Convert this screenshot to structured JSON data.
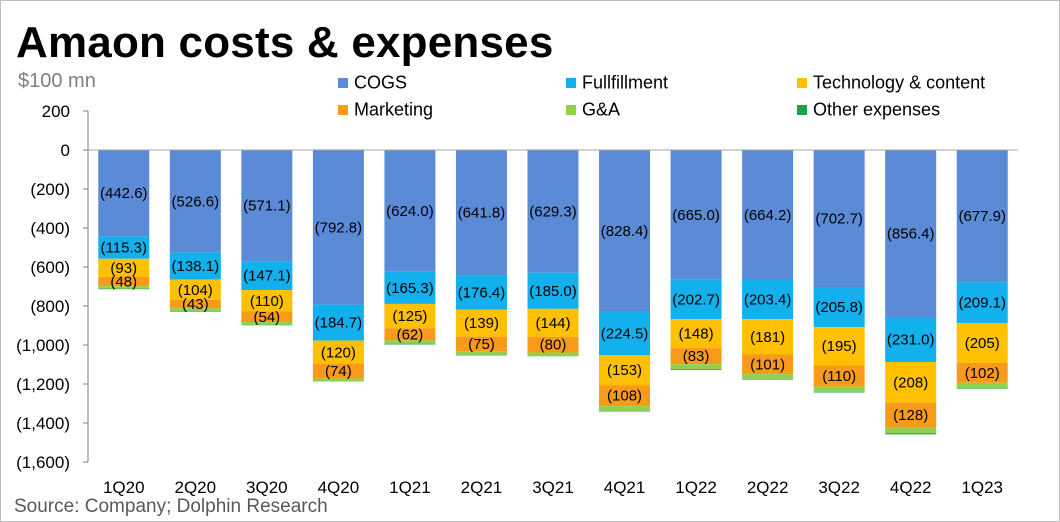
{
  "header": {
    "title": "Amaon costs & expenses",
    "unit": "$100 mn"
  },
  "footer": {
    "source": "Source: Company; Dolphin Research"
  },
  "colors": {
    "COGS": "#5b8bd6",
    "Fullfillment": "#12b0ec",
    "Technology & content": "#fec000",
    "Marketing": "#fa9a1a",
    "G&A": "#92d050",
    "Other expenses": "#1aa34a"
  },
  "chart_data": {
    "type": "bar",
    "stacked": true,
    "title": "Amaon costs & expenses",
    "ylabel": "$100 mn",
    "xlabel": "",
    "ylim": [
      -1600,
      200
    ],
    "yticks": [
      200,
      0,
      -200,
      -400,
      -600,
      -800,
      -1000,
      -1200,
      -1400,
      -1600
    ],
    "ytick_labels": [
      "200",
      "0",
      "(200)",
      "(400)",
      "(600)",
      "(800)",
      "(1,000)",
      "(1,200)",
      "(1,400)",
      "(1,600)"
    ],
    "categories": [
      "1Q20",
      "2Q20",
      "3Q20",
      "4Q20",
      "1Q21",
      "2Q21",
      "3Q21",
      "4Q21",
      "1Q22",
      "2Q22",
      "3Q22",
      "4Q22",
      "1Q23"
    ],
    "legend_position": "top-right",
    "series": [
      {
        "name": "COGS",
        "values": [
          -442.6,
          -526.6,
          -571.1,
          -792.8,
          -624.0,
          -641.8,
          -629.3,
          -828.4,
          -665.0,
          -664.2,
          -702.7,
          -856.4,
          -677.9
        ],
        "labels": [
          "(442.6)",
          "(526.6)",
          "(571.1)",
          "(792.8)",
          "(624.0)",
          "(641.8)",
          "(629.3)",
          "(828.4)",
          "(665.0)",
          "(664.2)",
          "(702.7)",
          "(856.4)",
          "(677.9)"
        ]
      },
      {
        "name": "Fullfillment",
        "values": [
          -115.3,
          -138.1,
          -147.1,
          -184.7,
          -165.3,
          -176.4,
          -185.0,
          -224.5,
          -202.7,
          -203.4,
          -205.8,
          -231.0,
          -209.1
        ],
        "labels": [
          "(115.3)",
          "(138.1)",
          "(147.1)",
          "(184.7)",
          "(165.3)",
          "(176.4)",
          "(185.0)",
          "(224.5)",
          "(202.7)",
          "(203.4)",
          "(205.8)",
          "(231.0)",
          "(209.1)"
        ]
      },
      {
        "name": "Technology & content",
        "values": [
          -93,
          -104,
          -110,
          -120,
          -125,
          -139,
          -144,
          -153,
          -148,
          -181,
          -195,
          -208,
          -205
        ],
        "labels": [
          "(93)",
          "(104)",
          "(110)",
          "(120)",
          "(125)",
          "(139)",
          "(144)",
          "(153)",
          "(148)",
          "(181)",
          "(195)",
          "(208)",
          "(205)"
        ]
      },
      {
        "name": "Marketing",
        "values": [
          -48,
          -43,
          -54,
          -74,
          -62,
          -75,
          -80,
          -108,
          -83,
          -101,
          -110,
          -128,
          -102
        ],
        "labels": [
          "(48)",
          "(43)",
          "(54)",
          "(74)",
          "(62)",
          "(75)",
          "(80)",
          "(108)",
          "(83)",
          "(101)",
          "(110)",
          "(128)",
          "(102)"
        ]
      },
      {
        "name": "G&A",
        "values": [
          -12,
          -13,
          -14,
          -16,
          -17,
          -18,
          -20,
          -24,
          -26,
          -26,
          -27,
          -29,
          -28
        ],
        "labels": [
          "",
          "",
          "",
          "",
          "",
          "",
          "",
          "",
          "",
          "",
          "",
          "",
          ""
        ]
      },
      {
        "name": "Other expenses",
        "values": [
          -3,
          -4,
          -2,
          3,
          -4,
          -3,
          3,
          -3,
          -4,
          -2,
          -3,
          -6,
          -2
        ],
        "labels": [
          "",
          "",
          "",
          "",
          "",
          "",
          "",
          "",
          "",
          "",
          "",
          "",
          ""
        ]
      }
    ]
  }
}
